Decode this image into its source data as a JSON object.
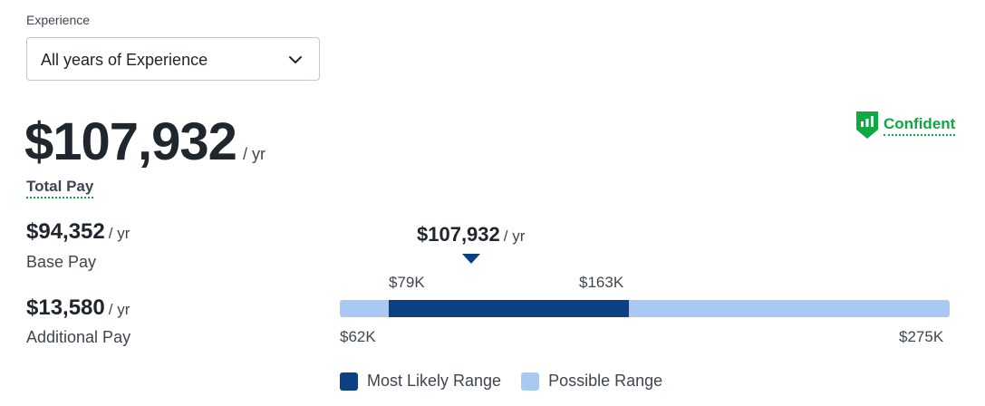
{
  "experience": {
    "label": "Experience",
    "selected": "All years of Experience"
  },
  "total_pay": {
    "amount": "$107,932",
    "unit": "/ yr",
    "label": "Total Pay"
  },
  "confidence": {
    "label": "Confident",
    "color": "#0caa41"
  },
  "base_pay": {
    "amount": "$94,352",
    "unit": "/ yr",
    "label": "Base Pay"
  },
  "additional_pay": {
    "amount": "$13,580",
    "unit": "/ yr",
    "label": "Additional Pay"
  },
  "range": {
    "median_amount": "$107,932",
    "median_unit": "/ yr",
    "median_value": 107932,
    "likely_low_label": "$79K",
    "likely_high_label": "$163K",
    "likely_low": 79000,
    "likely_high": 163000,
    "possible_low_label": "$62K",
    "possible_high_label": "$275K",
    "possible_low": 62000,
    "possible_high": 275000,
    "likely_color": "#0c3f84",
    "possible_color": "#a9c8f2"
  },
  "legend": {
    "likely": "Most Likely Range",
    "possible": "Possible Range"
  },
  "icons": {
    "dropdown": "chevron-down-icon",
    "confidence": "bar-chart-shield-icon"
  }
}
